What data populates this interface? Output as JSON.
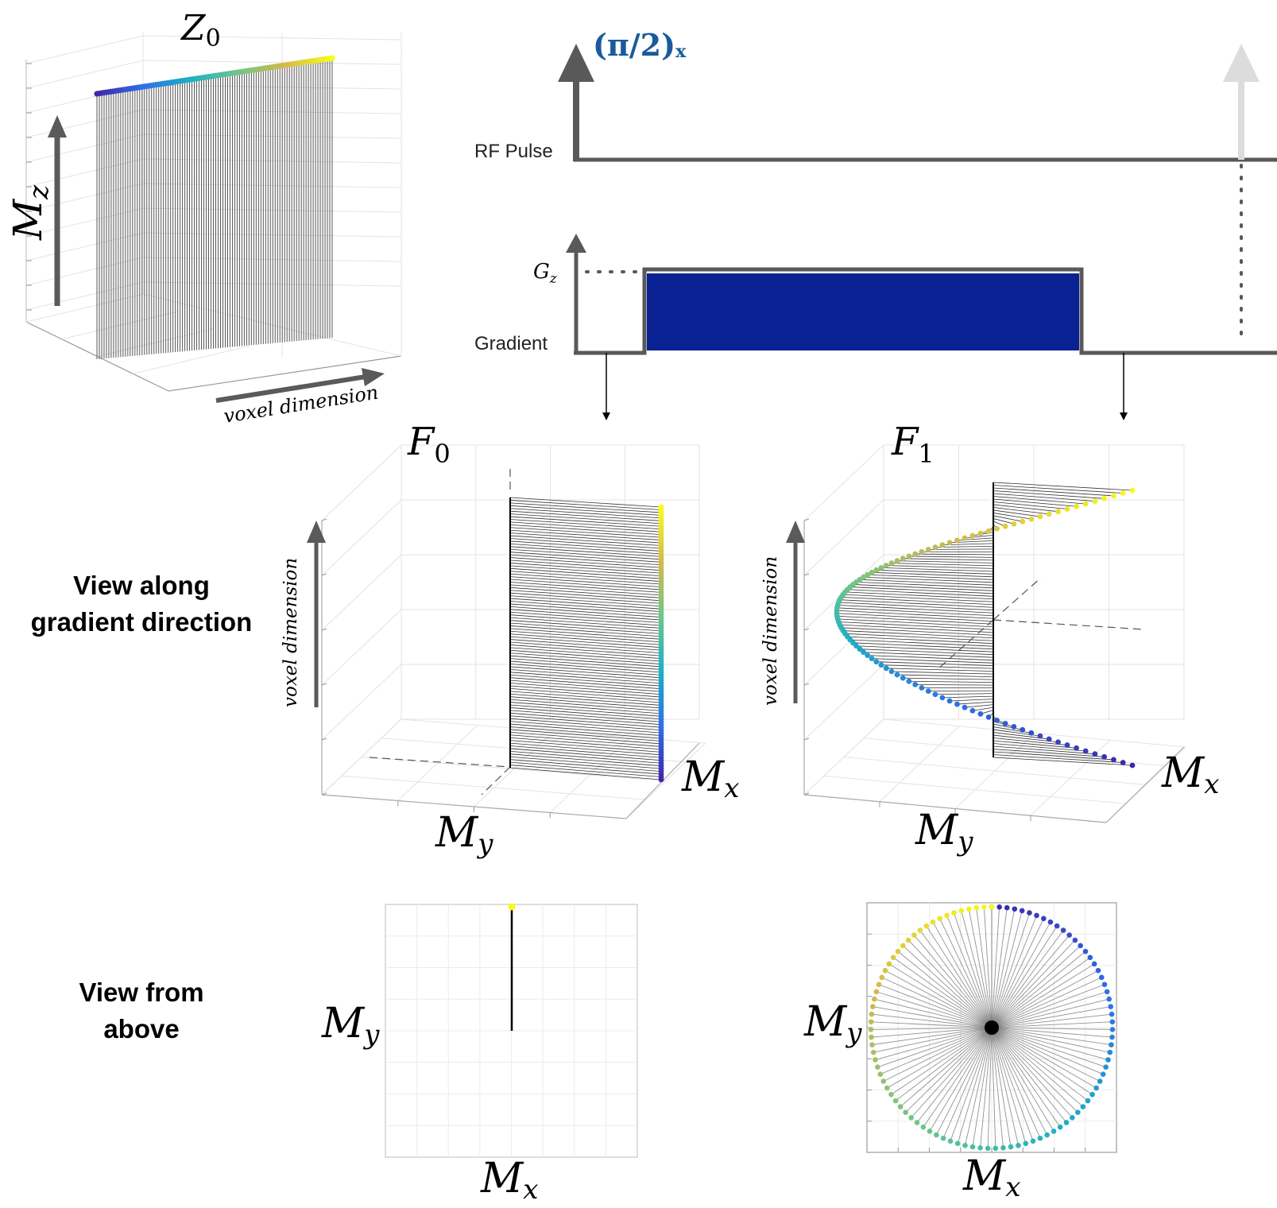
{
  "z0_panel": {
    "title_main": "Z",
    "title_sub": "0",
    "mz_main": "M",
    "mz_sub": "z",
    "voxel_label": "voxel dimension"
  },
  "sequence": {
    "pulse_label_main": "(π/2)",
    "pulse_label_sub": "x",
    "rf_label": "RF Pulse",
    "gz_main": "G",
    "gz_sub": "z",
    "gradient_label": "Gradient",
    "gradient_color": "#0a2194",
    "line_color": "#595959",
    "ghost_arrow_color": "#dcdcdc"
  },
  "f0_panel": {
    "title_main": "F",
    "title_sub": "0",
    "voxel_label": "voxel dimension",
    "mx_main": "M",
    "mx_sub": "x",
    "my_main": "M",
    "my_sub": "y"
  },
  "f1_panel": {
    "title_main": "F",
    "title_sub": "1",
    "voxel_label": "voxel dimension",
    "mx_main": "M",
    "mx_sub": "x",
    "my_main": "M",
    "my_sub": "y"
  },
  "row_labels": {
    "along_line1": "View along",
    "along_line2": "gradient direction",
    "above_line1": "View from",
    "above_line2": "above"
  },
  "top_view_f0": {
    "my_main": "M",
    "my_sub": "y",
    "mx_main": "M",
    "mx_sub": "x"
  },
  "top_view_f1": {
    "my_main": "M",
    "my_sub": "y",
    "mx_main": "M",
    "mx_sub": "x"
  },
  "colormap": [
    "#3e26a8",
    "#2f6ee8",
    "#1bb0c4",
    "#6cc68b",
    "#d2b94c",
    "#f9fb15"
  ]
}
